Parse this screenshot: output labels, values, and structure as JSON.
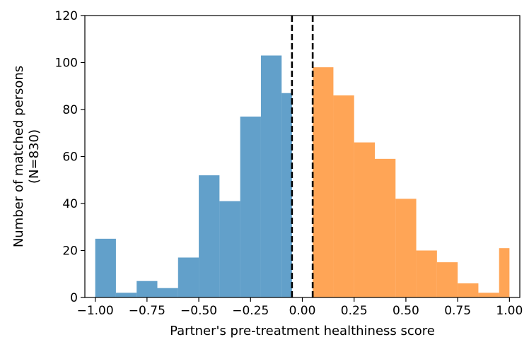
{
  "chart_data": {
    "type": "bar",
    "subtype": "histogram",
    "xlabel": "Partner's pre-treatment healthiness score",
    "ylabel": [
      "Number of matched persons",
      "(N=830)"
    ],
    "xlim": [
      -1.05,
      1.05
    ],
    "ylim": [
      0,
      120
    ],
    "xticks": [
      -1.0,
      -0.75,
      -0.5,
      -0.25,
      0.0,
      0.25,
      0.5,
      0.75,
      1.0
    ],
    "xtick_labels": [
      "−1.00",
      "−0.75",
      "−0.50",
      "−0.25",
      "0.00",
      "0.25",
      "0.50",
      "0.75",
      "1.00"
    ],
    "yticks": [
      0,
      20,
      40,
      60,
      80,
      100,
      120
    ],
    "ytick_labels": [
      "0",
      "20",
      "40",
      "60",
      "80",
      "100",
      "120"
    ],
    "grid": false,
    "legend": null,
    "reference_lines": [
      {
        "x": -0.05,
        "style": "dashed",
        "color": "#000000"
      },
      {
        "x": 0.05,
        "style": "dashed",
        "color": "#000000"
      }
    ],
    "series": [
      {
        "color": "#1f77b4",
        "bins": [
          {
            "x0": -1.0,
            "x1": -0.9,
            "count": 25
          },
          {
            "x0": -0.9,
            "x1": -0.8,
            "count": 2
          },
          {
            "x0": -0.8,
            "x1": -0.7,
            "count": 7
          },
          {
            "x0": -0.7,
            "x1": -0.6,
            "count": 4
          },
          {
            "x0": -0.6,
            "x1": -0.5,
            "count": 17
          },
          {
            "x0": -0.5,
            "x1": -0.4,
            "count": 52
          },
          {
            "x0": -0.4,
            "x1": -0.3,
            "count": 41
          },
          {
            "x0": -0.3,
            "x1": -0.2,
            "count": 77
          },
          {
            "x0": -0.2,
            "x1": -0.1,
            "count": 103
          },
          {
            "x0": -0.1,
            "x1": -0.05,
            "count": 87
          }
        ]
      },
      {
        "color": "#ff7f0e",
        "bins": [
          {
            "x0": 0.05,
            "x1": 0.15,
            "count": 98
          },
          {
            "x0": 0.15,
            "x1": 0.25,
            "count": 86
          },
          {
            "x0": 0.25,
            "x1": 0.35,
            "count": 66
          },
          {
            "x0": 0.35,
            "x1": 0.45,
            "count": 59
          },
          {
            "x0": 0.45,
            "x1": 0.55,
            "count": 42
          },
          {
            "x0": 0.55,
            "x1": 0.65,
            "count": 20
          },
          {
            "x0": 0.65,
            "x1": 0.75,
            "count": 15
          },
          {
            "x0": 0.75,
            "x1": 0.85,
            "count": 6
          },
          {
            "x0": 0.85,
            "x1": 0.95,
            "count": 2
          },
          {
            "x0": 0.95,
            "x1": 1.0,
            "count": 21
          }
        ]
      }
    ]
  }
}
